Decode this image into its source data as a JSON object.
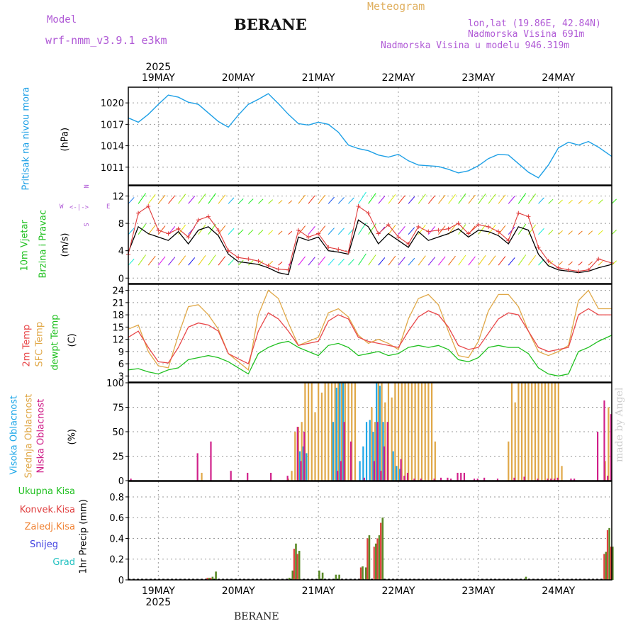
{
  "header": {
    "title": "BERANE",
    "model_label": "Model",
    "model_name": "wrf-nmm_v3.9.1 e3km",
    "meteogram_label": "Meteogram",
    "lonlat": "lon,lat (19.86E, 42.84N)",
    "altitude": "Nadmorska Visina 691m",
    "model_altitude": "Nadmorska Visina u modelu 946.319m"
  },
  "footer": {
    "station": "BERANE",
    "credit": "made by Angel"
  },
  "axis": {
    "year": "2025",
    "days": [
      "19MAY",
      "20MAY",
      "21MAY",
      "22MAY",
      "23MAY",
      "24MAY"
    ]
  },
  "colors": {
    "pressure": "#1ea0e6",
    "wind_speed": "#000000",
    "wind_gust": "#e03c3c",
    "t2m": "#e8484a",
    "sfc": "#e0a848",
    "dewpt": "#20c020",
    "high_cloud": "#20a8e8",
    "mid_cloud": "#e0a848",
    "low_cloud": "#d0208a",
    "total_precip": "#5a8a28",
    "conv_precip": "#e04040",
    "frz_precip": "#f08030",
    "snow": "#4040e0",
    "hail": "#20c0c0"
  },
  "chart_data": [
    {
      "type": "line",
      "name": "pressure",
      "ylabel_lines": [
        "Pritisak na nivou mora",
        "(hPa)"
      ],
      "yticks": [
        "1020",
        "1017",
        "1014",
        "1011"
      ],
      "ylim": [
        1008.5,
        1022.2
      ],
      "x_hours": [
        0,
        3,
        6,
        9,
        12,
        15,
        18,
        21,
        24,
        27,
        30,
        33,
        36,
        39,
        42,
        45,
        48,
        51,
        54,
        57,
        60,
        63,
        66,
        69,
        72,
        75,
        78,
        81,
        84,
        87,
        90,
        93,
        96,
        99,
        102,
        105,
        108,
        111,
        114,
        117,
        120,
        123,
        126,
        129,
        132,
        135,
        138,
        141,
        145
      ],
      "values": [
        1017.9,
        1017.3,
        1018.4,
        1019.8,
        1021.1,
        1020.8,
        1020.1,
        1019.8,
        1018.6,
        1017.4,
        1016.6,
        1018.3,
        1019.8,
        1020.5,
        1021.3,
        1019.9,
        1018.4,
        1017.1,
        1016.9,
        1017.3,
        1017.0,
        1015.9,
        1014.1,
        1013.6,
        1013.3,
        1012.7,
        1012.4,
        1012.8,
        1011.9,
        1011.3,
        1011.2,
        1011.1,
        1010.7,
        1010.2,
        1010.5,
        1011.2,
        1012.2,
        1012.8,
        1012.7,
        1011.5,
        1010.3,
        1009.5,
        1011.3,
        1013.7,
        1014.5,
        1014.1,
        1014.6,
        1013.8,
        1012.5
      ]
    },
    {
      "type": "line",
      "name": "wind",
      "ylabel_lines": [
        "10m Vjetar",
        "Brzina i Pravac",
        "(m/s)"
      ],
      "compass": [
        "N",
        "W",
        "E",
        "S"
      ],
      "yticks": [
        "12",
        "8",
        "4",
        "0"
      ],
      "ylim": [
        -0.8,
        13.5
      ],
      "x_hours": [
        0,
        3,
        6,
        9,
        12,
        15,
        18,
        21,
        24,
        27,
        30,
        33,
        36,
        39,
        42,
        45,
        48,
        51,
        54,
        57,
        60,
        63,
        66,
        69,
        72,
        75,
        78,
        81,
        84,
        87,
        90,
        93,
        96,
        99,
        102,
        105,
        108,
        111,
        114,
        117,
        120,
        123,
        126,
        129,
        132,
        135,
        138,
        141,
        145
      ],
      "speed": [
        3.8,
        7.5,
        6.5,
        6.0,
        5.5,
        6.8,
        5.0,
        7.0,
        7.5,
        6.2,
        3.5,
        2.4,
        2.2,
        2.0,
        1.5,
        0.8,
        0.5,
        6.0,
        5.5,
        6.0,
        4.0,
        3.8,
        3.5,
        8.5,
        7.5,
        5.0,
        6.5,
        5.5,
        4.5,
        6.8,
        5.5,
        6.0,
        6.5,
        7.2,
        6.0,
        7.0,
        6.8,
        6.2,
        5.0,
        7.5,
        7.0,
        3.5,
        1.8,
        1.2,
        1.0,
        0.8,
        1.0,
        1.5,
        2.0
      ],
      "gust": [
        3.5,
        9.5,
        10.5,
        7.0,
        6.5,
        7.2,
        6.0,
        8.5,
        9.0,
        7.0,
        4.0,
        3.0,
        2.8,
        2.5,
        1.8,
        1.3,
        1.2,
        7.0,
        6.0,
        6.5,
        4.5,
        4.2,
        3.8,
        10.5,
        9.5,
        6.5,
        7.8,
        6.0,
        5.0,
        7.5,
        6.8,
        7.0,
        7.2,
        8.0,
        6.5,
        7.8,
        7.5,
        6.8,
        5.5,
        9.5,
        9.0,
        4.5,
        2.5,
        1.5,
        1.2,
        1.0,
        1.2,
        2.8,
        2.2
      ]
    },
    {
      "type": "line",
      "name": "temperature",
      "ylabel_lines": [
        "2m Temp",
        "SFC Temp",
        "dewpt Temp",
        "(C)"
      ],
      "yticks": [
        "24",
        "21",
        "18",
        "15",
        "12",
        "9",
        "6",
        "3"
      ],
      "ylim": [
        1.5,
        25.5
      ],
      "x_hours": [
        0,
        3,
        6,
        9,
        12,
        15,
        18,
        21,
        24,
        27,
        30,
        33,
        36,
        39,
        42,
        45,
        48,
        51,
        54,
        57,
        60,
        63,
        66,
        69,
        72,
        75,
        78,
        81,
        84,
        87,
        90,
        93,
        96,
        99,
        102,
        105,
        108,
        111,
        114,
        117,
        120,
        123,
        126,
        129,
        132,
        135,
        138,
        141,
        145
      ],
      "t2m": [
        12.5,
        14.0,
        10.0,
        6.5,
        6.2,
        10.0,
        15.0,
        16.0,
        15.5,
        14.0,
        8.5,
        7.2,
        6.0,
        14.0,
        18.5,
        17.0,
        14.0,
        10.5,
        11.0,
        11.5,
        16.5,
        18.0,
        17.0,
        12.5,
        11.5,
        11.0,
        10.5,
        10.0,
        14.0,
        17.5,
        19.0,
        18.0,
        15.0,
        10.5,
        9.5,
        10.0,
        13.5,
        17.0,
        18.5,
        18.0,
        14.0,
        10.0,
        9.0,
        9.5,
        10.0,
        18.0,
        19.5,
        18.0,
        18.0
      ],
      "sfc": [
        14.5,
        15.5,
        9.0,
        5.5,
        5.0,
        13.0,
        20.0,
        20.5,
        18.0,
        14.5,
        8.5,
        6.5,
        4.5,
        18.0,
        24.0,
        22.0,
        16.0,
        10.5,
        11.5,
        12.5,
        18.5,
        19.5,
        17.5,
        13.0,
        11.0,
        12.0,
        11.0,
        9.5,
        17.0,
        22.0,
        23.0,
        20.5,
        14.0,
        8.0,
        7.5,
        11.5,
        19.0,
        23.0,
        23.0,
        20.0,
        14.0,
        9.0,
        8.0,
        9.0,
        10.5,
        21.5,
        24.0,
        19.5,
        19.5
      ],
      "dewpt": [
        4.5,
        4.8,
        4.0,
        3.5,
        4.5,
        5.0,
        7.0,
        7.5,
        8.0,
        7.5,
        6.5,
        5.0,
        3.5,
        8.5,
        10.0,
        11.0,
        11.5,
        10.0,
        9.0,
        8.0,
        10.5,
        11.0,
        10.0,
        8.0,
        8.5,
        9.0,
        8.0,
        8.5,
        10.0,
        10.5,
        10.0,
        10.5,
        9.5,
        7.0,
        6.5,
        7.5,
        10.0,
        10.5,
        10.0,
        10.0,
        8.5,
        5.0,
        3.5,
        3.0,
        3.5,
        9.0,
        10.0,
        11.5,
        13.0
      ]
    },
    {
      "type": "bar",
      "name": "cloud_cover",
      "ylabel_lines": [
        "Visoka Oblacnost",
        "Srednja Oblacnost",
        "Niska Oblacnost",
        "(%)"
      ],
      "yticks": [
        "100",
        "75",
        "50",
        "25",
        "0"
      ],
      "ylim": [
        0,
        100
      ],
      "mid_hours": [
        22,
        48,
        49,
        50,
        51,
        52,
        53,
        54,
        55,
        56,
        57,
        58,
        59,
        60,
        61,
        62,
        63,
        64,
        65,
        66,
        67,
        68,
        73,
        74,
        75,
        76,
        77,
        78,
        79,
        80,
        81,
        82,
        83,
        84,
        85,
        86,
        87,
        88,
        89,
        90,
        91,
        92,
        114,
        115,
        116,
        117,
        118,
        119,
        120,
        121,
        122,
        123,
        124,
        125,
        126,
        127,
        128,
        129,
        130,
        143,
        144
      ],
      "mid_values": [
        8,
        2,
        10,
        50,
        55,
        60,
        100,
        100,
        100,
        70,
        100,
        90,
        100,
        100,
        100,
        100,
        100,
        100,
        100,
        100,
        100,
        100,
        75,
        60,
        100,
        100,
        80,
        100,
        85,
        100,
        100,
        100,
        100,
        100,
        100,
        100,
        100,
        100,
        100,
        100,
        100,
        40,
        40,
        100,
        80,
        100,
        100,
        100,
        100,
        100,
        100,
        100,
        100,
        100,
        100,
        100,
        100,
        100,
        15,
        20,
        75
      ],
      "high_hours": [
        51,
        52,
        53,
        61,
        62,
        63,
        64,
        69,
        70,
        71,
        72,
        73,
        74,
        75,
        76,
        79,
        80,
        81
      ],
      "high_values": [
        30,
        35,
        28,
        60,
        95,
        100,
        100,
        20,
        35,
        60,
        62,
        50,
        100,
        97,
        60,
        30,
        15,
        12
      ],
      "low_hours": [
        0,
        20,
        24,
        30,
        35,
        42,
        47,
        50,
        51,
        52,
        62,
        63,
        64,
        66,
        70,
        73,
        74,
        75,
        76,
        77,
        81,
        82,
        83,
        85,
        87,
        91,
        93,
        95,
        96,
        98,
        99,
        100,
        103,
        104,
        106,
        110,
        115,
        118,
        122,
        125,
        126,
        127,
        128,
        132,
        133,
        140,
        142,
        143,
        144
      ],
      "low_values": [
        2,
        28,
        40,
        10,
        8,
        8,
        5,
        55,
        20,
        50,
        10,
        20,
        60,
        40,
        3,
        20,
        60,
        10,
        35,
        60,
        22,
        5,
        8,
        2,
        2,
        2,
        3,
        3,
        2,
        8,
        8,
        8,
        2,
        2,
        3,
        2,
        3,
        4,
        2,
        2,
        2,
        2,
        3,
        2,
        2,
        50,
        82,
        5,
        68
      ]
    },
    {
      "type": "bar",
      "name": "precipitation",
      "ylabel_lines": [
        "1hr Precip (mm)"
      ],
      "legend": [
        "Ukupna Kisa",
        "Konvek.Kisa",
        "Zaledj.Kisa",
        "Snijeg",
        "Grad"
      ],
      "yticks": [
        "0.8",
        "0.6",
        "0.4",
        "0.2",
        "0"
      ],
      "ylim": [
        0,
        0.95
      ],
      "total_hours": [
        24,
        25,
        26,
        48,
        49,
        50,
        51,
        57,
        58,
        62,
        63,
        70,
        71,
        72,
        74,
        75,
        76,
        119,
        143,
        144,
        145
      ],
      "total_values": [
        0.02,
        0.03,
        0.08,
        0.02,
        0.09,
        0.35,
        0.28,
        0.09,
        0.07,
        0.05,
        0.05,
        0.13,
        0.12,
        0.43,
        0.35,
        0.43,
        0.6,
        0.03,
        0.27,
        0.5,
        0.32
      ],
      "conv_hours": [
        24,
        25,
        50,
        51,
        70,
        72,
        74,
        75,
        76,
        143,
        144,
        145
      ],
      "conv_values": [
        0.02,
        0.02,
        0.3,
        0.25,
        0.12,
        0.4,
        0.32,
        0.4,
        0.55,
        0.25,
        0.48,
        0.32
      ]
    }
  ]
}
